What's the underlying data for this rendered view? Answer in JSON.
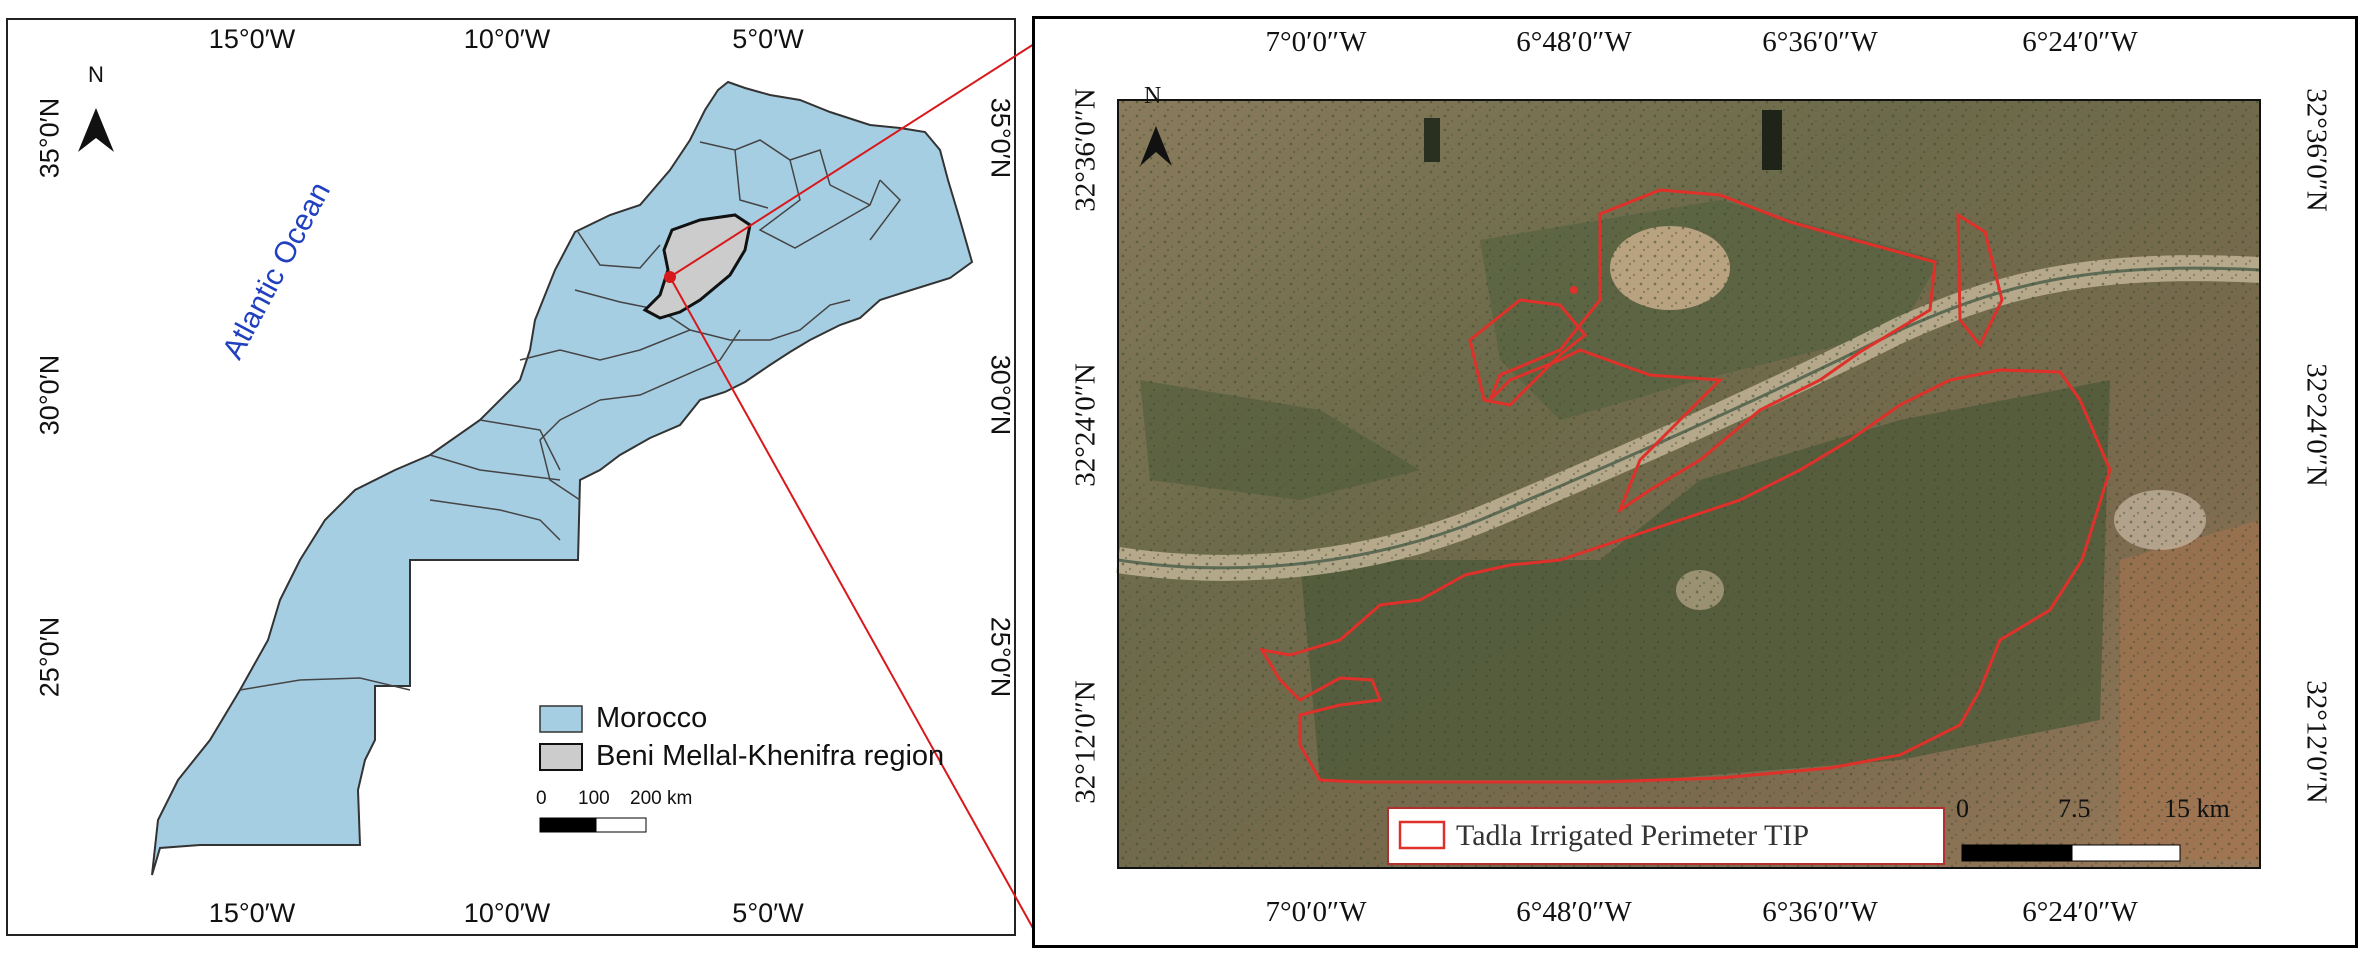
{
  "left_map": {
    "top_lon_labels": [
      "15°0′W",
      "10°0′W",
      "5°0′W"
    ],
    "bottom_lon_labels": [
      "15°0′W",
      "10°0′W",
      "5°0′W"
    ],
    "left_lat_labels": [
      "35°0′N",
      "30°0′N",
      "25°0′N"
    ],
    "right_lat_labels": [
      "35°0′N",
      "30°0′N",
      "25°0′N"
    ],
    "north_label": "N",
    "ocean_label": "Atlantic Ocean",
    "legend": {
      "items": [
        {
          "label": "Morocco",
          "color": "#a6cee3"
        },
        {
          "label": "Beni Mellal-Khenifra region",
          "color": "#cccccc"
        }
      ],
      "scale_ticks": [
        "0",
        "100",
        "200 km"
      ]
    },
    "colors": {
      "morocco_fill": "#a6cee3",
      "region_fill": "#cccccc",
      "marker": "#d7191c",
      "ocean_text": "#2040c0"
    }
  },
  "right_map": {
    "top_lon_labels": [
      "7°0′0″W",
      "6°48′0″W",
      "6°36′0″W",
      "6°24′0″W"
    ],
    "bottom_lon_labels": [
      "7°0′0″W",
      "6°48′0″W",
      "6°36′0″W",
      "6°24′0″W"
    ],
    "left_lat_labels": [
      "32°36′0″N",
      "32°24′0″N",
      "32°12′0″N"
    ],
    "right_lat_labels": [
      "32°36′0″N",
      "32°24′0″N",
      "32°12′0″N"
    ],
    "north_label": "N",
    "legend_label": "Tadla Irrigated Perimeter TIP",
    "scale_ticks": [
      "0",
      "7.5",
      "15 km"
    ],
    "colors": {
      "boundary": "#e0302a",
      "legend_border": "#b03030"
    }
  }
}
